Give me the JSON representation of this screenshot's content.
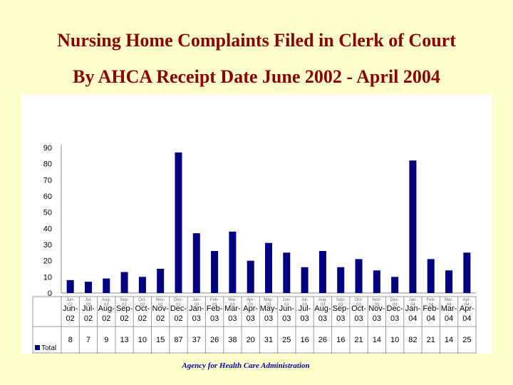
{
  "titles": {
    "line1": "Nursing Home Complaints Filed in Clerk of Court",
    "line2": "By AHCA Receipt Date June 2002 - April 2004"
  },
  "footer": "Agency for Health Care Administration",
  "colors": {
    "bar": "#000080",
    "title": "#8b0000",
    "footer": "#0000aa",
    "background": "#ffffcc"
  },
  "chart_data": {
    "type": "bar",
    "title": "",
    "xlabel": "",
    "ylabel": "",
    "ylim": [
      0,
      90
    ],
    "yticks": [
      "0",
      "10",
      "20",
      "30",
      "40",
      "50",
      "60",
      "70",
      "80",
      "90"
    ],
    "grid": false,
    "legend": "bottom-left",
    "data_table": true,
    "categories": [
      "Jun-02",
      "Jul-02",
      "Aug-02",
      "Sep-02",
      "Oct-02",
      "Nov-02",
      "Dec-02",
      "Jan-03",
      "Feb-03",
      "Mar-03",
      "Apr-03",
      "May-03",
      "Jun-03",
      "Jul-03",
      "Aug-03",
      "Sep-03",
      "Oct-03",
      "Nov-03",
      "Dec-03",
      "Jan-04",
      "Feb-04",
      "Mar-04",
      "Apr-04"
    ],
    "series": [
      {
        "name": "Total",
        "values": [
          8,
          7,
          9,
          13,
          10,
          15,
          87,
          37,
          26,
          38,
          20,
          31,
          25,
          16,
          26,
          16,
          21,
          14,
          10,
          82,
          21,
          14,
          25
        ]
      }
    ]
  }
}
